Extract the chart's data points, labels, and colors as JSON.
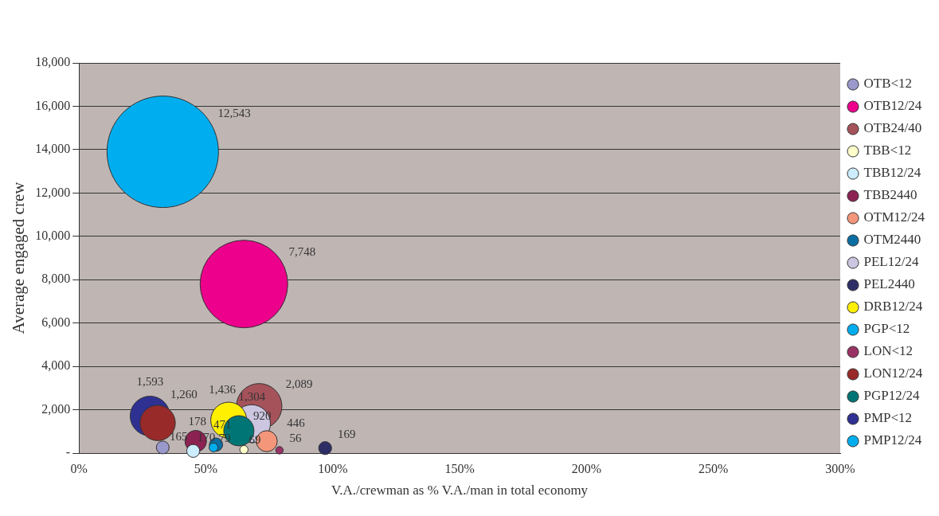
{
  "chart_data": {
    "type": "bubble",
    "xlabel": "V.A./crewman as % V.A./man in total economy",
    "ylabel": "Average engaged crew",
    "xlim": [
      0,
      300
    ],
    "xticks": [
      {
        "value": 0,
        "label": "0%"
      },
      {
        "value": 50,
        "label": "50%"
      },
      {
        "value": 100,
        "label": "100%"
      },
      {
        "value": 150,
        "label": "150%"
      },
      {
        "value": 200,
        "label": "200%"
      },
      {
        "value": 250,
        "label": "250%"
      },
      {
        "value": 300,
        "label": "300%"
      }
    ],
    "ylim": [
      0,
      18000
    ],
    "yticks": [
      {
        "value": 0,
        "label": "-"
      },
      {
        "value": 2000,
        "label": "2,000"
      },
      {
        "value": 4000,
        "label": "4,000"
      },
      {
        "value": 6000,
        "label": "6,000"
      },
      {
        "value": 8000,
        "label": "8,000"
      },
      {
        "value": 10000,
        "label": "10,000"
      },
      {
        "value": 12000,
        "label": "12,000"
      },
      {
        "value": 14000,
        "label": "14,000"
      },
      {
        "value": 16000,
        "label": "16,000"
      },
      {
        "value": 18000,
        "label": "18,000"
      }
    ],
    "grid": "y",
    "legend": "right",
    "series": [
      {
        "name": "OTB<12",
        "color": "#9999cc",
        "x": [
          33
        ],
        "values": [
          260
        ],
        "sizes": [
          165
        ],
        "value_labels": [
          "165"
        ]
      },
      {
        "name": "OTB12/24",
        "color": "#ec008c",
        "x": [
          65
        ],
        "values": [
          7800
        ],
        "sizes": [
          7748
        ],
        "value_labels": [
          "7,748"
        ]
      },
      {
        "name": "OTB24/40",
        "color": "#a5525a",
        "x": [
          71
        ],
        "values": [
          2160
        ],
        "sizes": [
          2089
        ],
        "value_labels": [
          "2,089"
        ]
      },
      {
        "name": "TBB<12",
        "color": "#ffffcc",
        "x": [
          65
        ],
        "values": [
          160
        ],
        "sizes": [
          69
        ],
        "value_labels": [
          "69"
        ]
      },
      {
        "name": "TBB12/24",
        "color": "#ccecff",
        "x": [
          45
        ],
        "values": [
          100
        ],
        "sizes": [
          170
        ],
        "value_labels": [
          "170"
        ]
      },
      {
        "name": "TBB2440",
        "color": "#8b2252",
        "x": [
          46
        ],
        "values": [
          550
        ],
        "sizes": [
          471
        ],
        "value_labels": [
          "471"
        ]
      },
      {
        "name": "OTM12/24",
        "color": "#f4967a",
        "x": [
          74
        ],
        "values": [
          550
        ],
        "sizes": [
          446
        ],
        "value_labels": [
          "446"
        ]
      },
      {
        "name": "OTM2440",
        "color": "#0b6ea3",
        "x": [
          54
        ],
        "values": [
          390
        ],
        "sizes": [
          178
        ],
        "value_labels": [
          "178"
        ]
      },
      {
        "name": "PEL12/24",
        "color": "#ccc6e0",
        "x": [
          68
        ],
        "values": [
          1360
        ],
        "sizes": [
          1436
        ],
        "value_labels": [
          "1,436"
        ]
      },
      {
        "name": "PEL2440",
        "color": "#2e2e66",
        "x": [
          97
        ],
        "values": [
          230
        ],
        "sizes": [
          169
        ],
        "value_labels": [
          "169"
        ]
      },
      {
        "name": "DRB12/24",
        "color": "#ffef00",
        "x": [
          59
        ],
        "values": [
          1520
        ],
        "sizes": [
          1304
        ],
        "value_labels": [
          "1,304"
        ]
      },
      {
        "name": "PGP<12",
        "color": "#00aeef",
        "x": [
          53
        ],
        "values": [
          260
        ],
        "sizes": [
          79
        ],
        "value_labels": [
          "79"
        ]
      },
      {
        "name": "LON<12",
        "color": "#993366",
        "x": [
          79
        ],
        "values": [
          130
        ],
        "sizes": [
          56
        ],
        "value_labels": [
          "56"
        ]
      },
      {
        "name": "LON12/24",
        "color": "#992a2a",
        "x": [
          31
        ],
        "values": [
          1390
        ],
        "sizes": [
          1260
        ],
        "value_labels": [
          "1,260"
        ]
      },
      {
        "name": "PGP12/24",
        "color": "#007575",
        "x": [
          63
        ],
        "values": [
          1030
        ],
        "sizes": [
          920
        ],
        "value_labels": [
          "920"
        ]
      },
      {
        "name": "PMP<12",
        "color": "#2e3192",
        "x": [
          28
        ],
        "values": [
          1710
        ],
        "sizes": [
          1593
        ],
        "value_labels": [
          "1,593"
        ]
      },
      {
        "name": "PMP12/24",
        "color": "#00aeef",
        "x": [
          33
        ],
        "values": [
          13900
        ],
        "sizes": [
          12543
        ],
        "value_labels": [
          "12,543"
        ]
      }
    ]
  }
}
